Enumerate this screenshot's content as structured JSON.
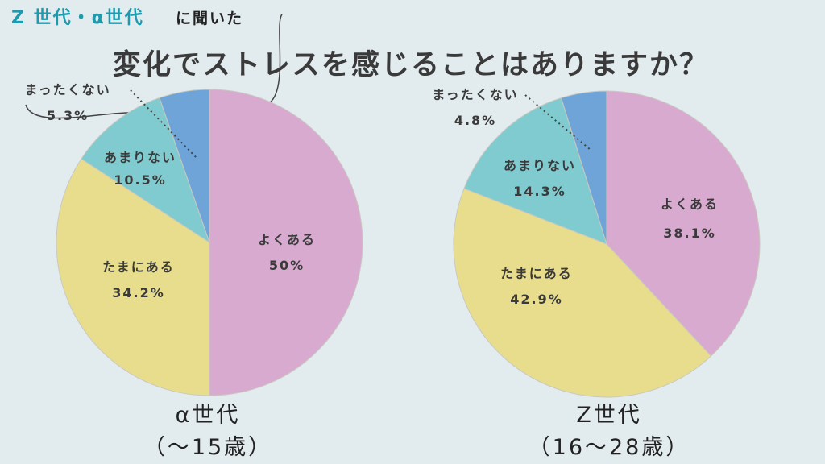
{
  "header": {
    "subtitle_highlight": "Z 世代・α世代",
    "subtitle_rest": "に聞いた",
    "title": "変化でストレスを感じることはありますか？"
  },
  "colors": {
    "よくある": "#d8aacf",
    "たまにある": "#e8dd8c",
    "あまりない": "#80cbcf",
    "まったくない": "#6fa4d8"
  },
  "chart_data": [
    {
      "type": "pie",
      "title": "α世代",
      "subtitle": "（～15歳）",
      "categories": [
        "よくある",
        "たまにある",
        "あまりない",
        "まったくない"
      ],
      "values": [
        50,
        34.2,
        10.5,
        5.3
      ],
      "labels": [
        "50%",
        "34.2%",
        "10.5%",
        "5.3%"
      ]
    },
    {
      "type": "pie",
      "title": "Z世代",
      "subtitle": "（16～28歳）",
      "categories": [
        "よくある",
        "たまにある",
        "あまりない",
        "まったくない"
      ],
      "values": [
        38.1,
        42.9,
        14.3,
        4.8
      ],
      "labels": [
        "38.1%",
        "42.9%",
        "14.3%",
        "4.8%"
      ]
    }
  ]
}
